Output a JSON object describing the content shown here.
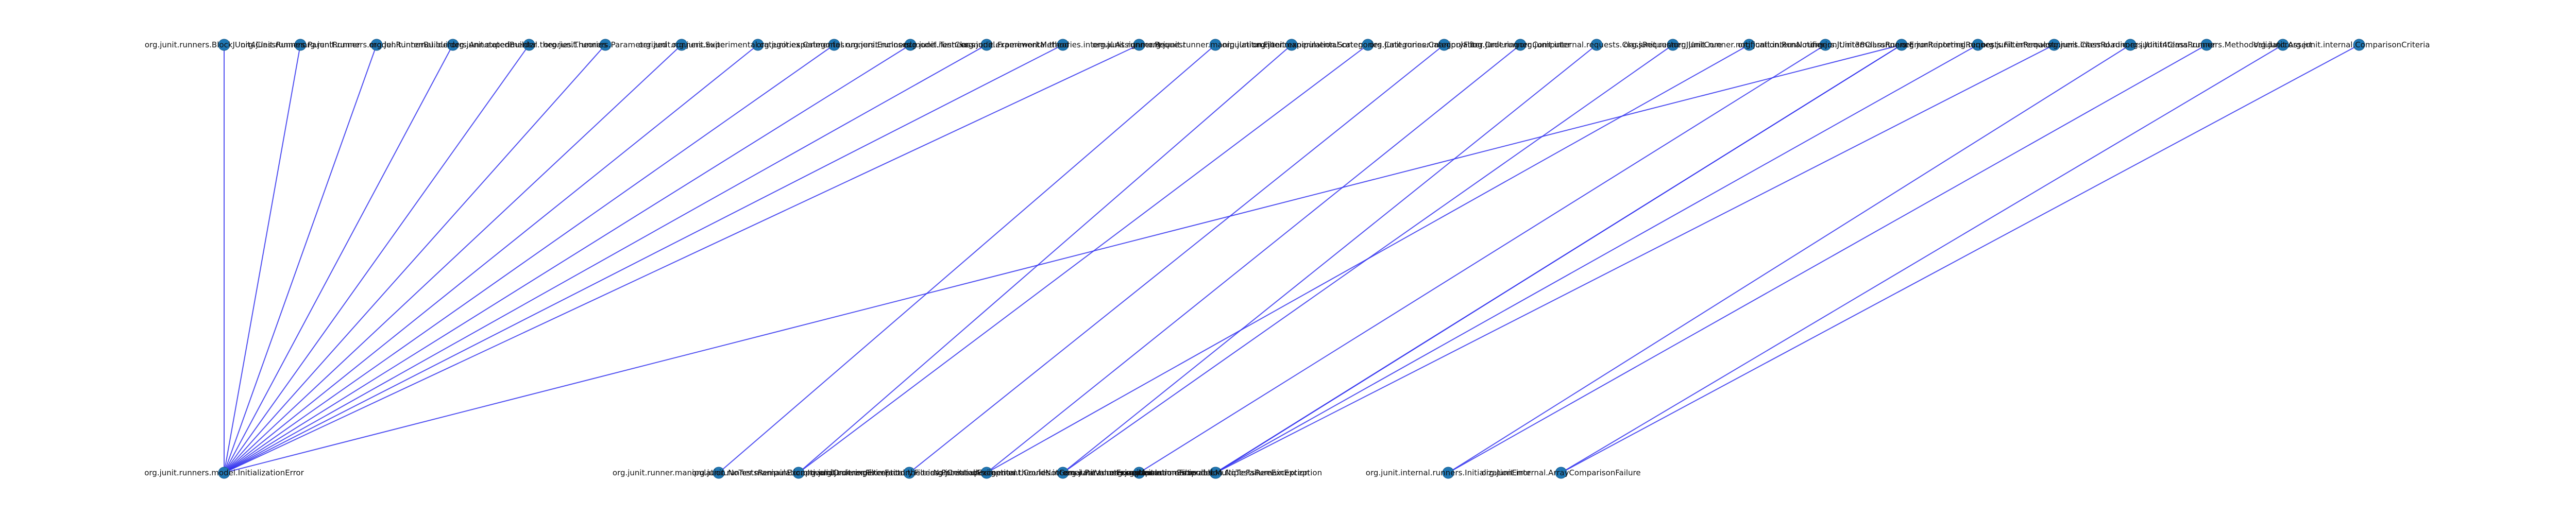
{
  "diagram": {
    "edge_color": "#3333ee",
    "node_color": "#1f77b4",
    "top_labels": [
      "org.junit.runners.BlockJUnit4ClassRunner",
      "org.junit.runners.ParentRunner",
      "org.junit.runners.model.RunnerBuilder",
      "org.junit.internal.builders.AnnotatedBuilder",
      "org.junit.experimental.theories.Theories",
      "org.junit.runners.Parameterized",
      "org.junit.runners.Suite",
      "org.junit.experimental.categories.Categories",
      "org.junit.experimental.runners.Enclosed",
      "org.junit.runners.model.TestClass",
      "org.junit.runners.model.FrameworkMethod",
      "org.junit.experimental.theories.internal.Assignments",
      "org.junit.runner.Request",
      "org.junit.runner.manipulation.Filter",
      "org.junit.runner.manipulation.Sorter",
      "org.junit.experimental.categories.Categories.CategoryFilter",
      "org.junit.runner.manipulation.Ordering",
      "org.junit.runner.Computer",
      "org.junit.internal.requests.ClassRequest",
      "org.junit.runner.JUnitCore",
      "org.junit.runner.notification.RunNotifier",
      "org.junit.internal.runners.JUnit38ClassRunner",
      "org.junit.internal.runners.ErrorReportingRunner",
      "org.junit.internal.requests.FilterRequest",
      "org.junit.internal.runners.ClassRoadie",
      "org.junit.internal.runners.JUnit4ClassRunner",
      "org.junit.internal.runners.MethodValidator",
      "org.junit.Assert",
      "org.junit.internal.ComparisonCriteria"
    ],
    "bottom_labels": [
      "org.junit.runners.model.InitializationError",
      "org.junit.runner.manipulation.NoTestsRemainException",
      "org.junit.runner.manipulation.InvalidOrderingException",
      "org.junit.runner.FilterFactory.FilterNotCreatedException",
      "org.junit.experimental.theories.PotentialAssignment.CouldNotGenerateValueException",
      "org.junit.experimental.theories.internal.ParameterizedAssertionError",
      "org.junit.runner.manipulation.Filterable",
      "org.junit.runners.model.MultipleFailureException",
      "org.junit.runner.manipulation.NoTestsRemainException",
      "org.junit.internal.runners.InitializationError",
      "org.junit.internal.ArrayComparisonFailure"
    ],
    "edges": [
      [
        0,
        0
      ],
      [
        1,
        0
      ],
      [
        2,
        0
      ],
      [
        3,
        0
      ],
      [
        4,
        0
      ],
      [
        5,
        0
      ],
      [
        6,
        0
      ],
      [
        7,
        0
      ],
      [
        8,
        0
      ],
      [
        9,
        0
      ],
      [
        10,
        0
      ],
      [
        11,
        0
      ],
      [
        12,
        0
      ],
      [
        22,
        0
      ],
      [
        13,
        1
      ],
      [
        14,
        2
      ],
      [
        15,
        2
      ],
      [
        16,
        3
      ],
      [
        17,
        4
      ],
      [
        20,
        4
      ],
      [
        18,
        5
      ],
      [
        19,
        5
      ],
      [
        21,
        6
      ],
      [
        22,
        7
      ],
      [
        23,
        7
      ],
      [
        22,
        8
      ],
      [
        24,
        8
      ],
      [
        25,
        9
      ],
      [
        26,
        9
      ],
      [
        27,
        10
      ],
      [
        28,
        10
      ]
    ]
  }
}
